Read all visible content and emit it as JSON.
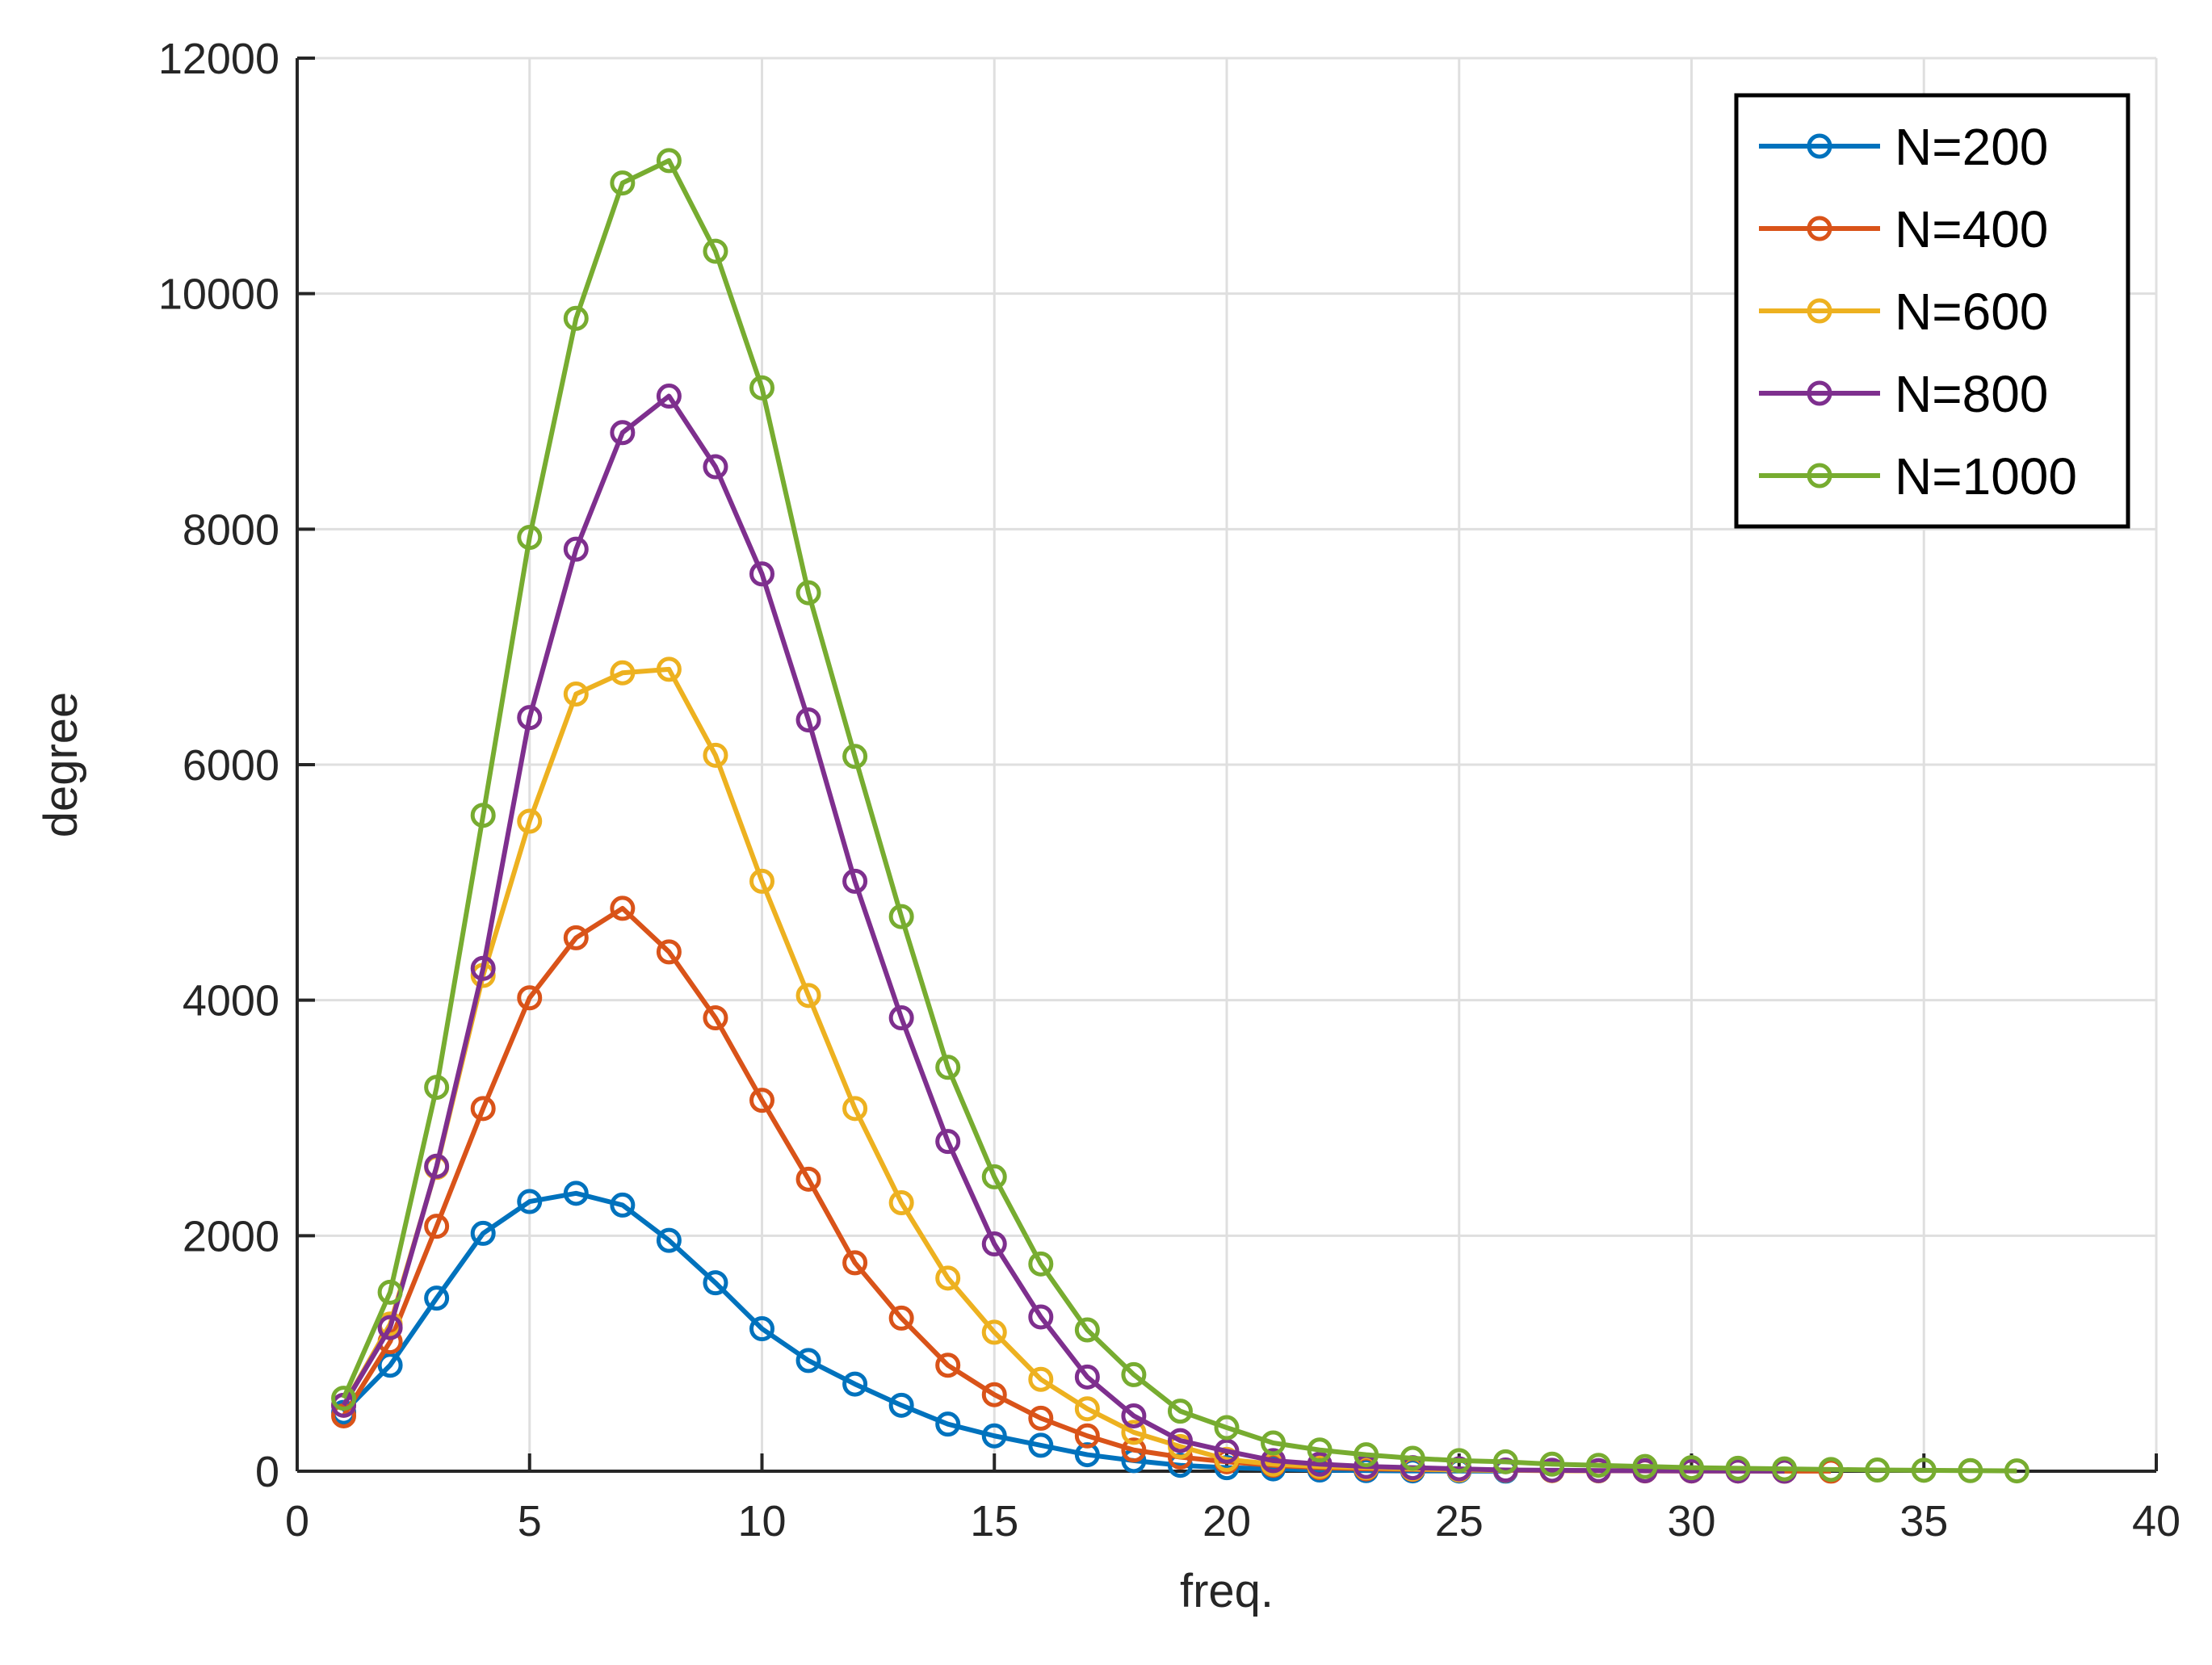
{
  "chart_data": {
    "type": "line",
    "title": "",
    "xlabel": "freq.",
    "ylabel": "degree",
    "xlim": [
      0,
      40
    ],
    "ylim": [
      0,
      12000
    ],
    "xticks": [
      0,
      5,
      10,
      15,
      20,
      25,
      30,
      35,
      40
    ],
    "yticks": [
      0,
      2000,
      4000,
      6000,
      8000,
      10000,
      12000
    ],
    "grid": true,
    "legend_position": "top-right",
    "marker": "circle",
    "series": [
      {
        "name": "N=200",
        "color": "#0072BD",
        "x": [
          1,
          2,
          3,
          4,
          5,
          6,
          7,
          8,
          9,
          10,
          11,
          12,
          13,
          14,
          15,
          16,
          17,
          18,
          19,
          20,
          21,
          22,
          23,
          24,
          25,
          26
        ],
        "values": [
          500,
          900,
          1470,
          2020,
          2290,
          2360,
          2260,
          1960,
          1600,
          1210,
          940,
          740,
          560,
          400,
          300,
          220,
          140,
          90,
          50,
          30,
          20,
          10,
          5,
          3,
          2,
          1
        ]
      },
      {
        "name": "N=400",
        "color": "#D95319",
        "x": [
          1,
          2,
          3,
          4,
          5,
          6,
          7,
          8,
          9,
          10,
          11,
          12,
          13,
          14,
          15,
          16,
          17,
          18,
          19,
          20,
          21,
          22,
          23,
          24,
          25,
          26,
          27,
          28,
          29,
          30,
          31,
          32,
          33
        ],
        "values": [
          470,
          1100,
          2080,
          3080,
          4020,
          4530,
          4780,
          4410,
          3850,
          3150,
          2480,
          1770,
          1300,
          900,
          650,
          450,
          300,
          180,
          120,
          80,
          50,
          30,
          20,
          15,
          10,
          8,
          5,
          4,
          3,
          2,
          2,
          1,
          1
        ]
      },
      {
        "name": "N=600",
        "color": "#EDB120",
        "x": [
          1,
          2,
          3,
          4,
          5,
          6,
          7,
          8,
          9,
          10,
          11,
          12,
          13,
          14,
          15,
          16,
          17,
          18,
          19,
          20,
          21,
          22,
          23,
          24,
          25,
          26,
          27,
          28
        ],
        "values": [
          560,
          1250,
          2580,
          4210,
          5520,
          6600,
          6780,
          6810,
          6080,
          5010,
          4040,
          3080,
          2280,
          1640,
          1180,
          780,
          530,
          330,
          210,
          100,
          60,
          40,
          30,
          20,
          10,
          8,
          5,
          3
        ]
      },
      {
        "name": "N=800",
        "color": "#7E2F8E",
        "x": [
          1,
          2,
          3,
          4,
          5,
          6,
          7,
          8,
          9,
          10,
          11,
          12,
          13,
          14,
          15,
          16,
          17,
          18,
          19,
          20,
          21,
          22,
          23,
          24,
          25,
          26,
          27,
          28,
          29,
          30,
          31,
          32
        ],
        "values": [
          560,
          1220,
          2590,
          4270,
          6400,
          7830,
          8820,
          9130,
          8530,
          7620,
          6380,
          5010,
          3850,
          2800,
          1930,
          1310,
          800,
          470,
          260,
          170,
          90,
          60,
          40,
          30,
          20,
          10,
          8,
          5,
          4,
          3,
          2,
          1
        ]
      },
      {
        "name": "N=1000",
        "color": "#77AC30",
        "x": [
          1,
          2,
          3,
          4,
          5,
          6,
          7,
          8,
          9,
          10,
          11,
          12,
          13,
          14,
          15,
          16,
          17,
          18,
          19,
          20,
          21,
          22,
          23,
          24,
          25,
          26,
          27,
          28,
          29,
          30,
          31,
          32,
          33,
          34,
          35,
          36,
          37
        ],
        "values": [
          620,
          1520,
          3260,
          5570,
          7930,
          9790,
          10940,
          11130,
          10360,
          9200,
          7460,
          6070,
          4710,
          3430,
          2500,
          1760,
          1200,
          820,
          510,
          370,
          240,
          180,
          140,
          110,
          90,
          80,
          60,
          50,
          40,
          30,
          25,
          20,
          15,
          10,
          8,
          5,
          3
        ]
      }
    ]
  }
}
